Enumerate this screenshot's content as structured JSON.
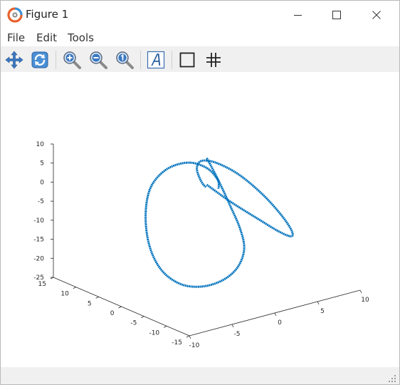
{
  "window": {
    "title": "Figure 1",
    "controls": [
      "minimize",
      "maximize",
      "close"
    ]
  },
  "menu": {
    "items": [
      "File",
      "Edit",
      "Tools"
    ]
  },
  "toolbar": {
    "tools": [
      {
        "name": "pan",
        "icon": "pan-arrows-icon"
      },
      {
        "name": "rotate",
        "icon": "rotate-icon"
      },
      {
        "name": "zoom-in",
        "icon": "zoom-in-icon"
      },
      {
        "name": "zoom-out",
        "icon": "zoom-out-icon"
      },
      {
        "name": "zoom-reset",
        "icon": "zoom-reset-icon"
      },
      {
        "name": "text",
        "icon": "text-icon"
      },
      {
        "name": "box",
        "icon": "box-icon"
      },
      {
        "name": "grid",
        "icon": "grid-icon"
      }
    ]
  },
  "chart_data": {
    "type": "line",
    "dimension": "3d",
    "title": "",
    "xlabel": "",
    "ylabel": "",
    "zlabel": "",
    "xlim": [
      -10,
      10
    ],
    "ylim": [
      -15,
      15
    ],
    "zlim": [
      -25,
      10
    ],
    "x_ticks": [
      "-10",
      "-5",
      "0",
      "5",
      "10"
    ],
    "y_ticks": [
      "-15",
      "-10",
      "-5",
      "0",
      "5",
      "10",
      "15"
    ],
    "z_ticks": [
      "-25",
      "-20",
      "-15",
      "-10",
      "-5",
      "0",
      "5",
      "10"
    ],
    "grid": false,
    "color": "#0072BD",
    "series": [
      {
        "x": [
          0.0,
          1.2,
          2.6,
          3.6,
          3.9,
          3.0,
          1.2,
          -1.2,
          -3.6,
          -5.6,
          -6.8,
          -7.0,
          -6.2,
          -4.2,
          -1.6,
          0.5,
          1.6,
          1.6
        ],
        "y": [
          0.0,
          -0.1,
          -0.3,
          -0.6,
          -0.9,
          -1.1,
          -1.2,
          -1.2,
          -1.0,
          -0.6,
          -0.2,
          0.3,
          0.7,
          1.0,
          1.1,
          0.9,
          0.6,
          0.4
        ],
        "z": [
          8.0,
          2.0,
          -6.0,
          -12.5,
          -17.8,
          -22.0,
          -24.2,
          -24.4,
          -22.4,
          -17.8,
          -11.0,
          -3.0,
          3.6,
          7.0,
          7.2,
          4.6,
          1.0,
          -1.2
        ]
      },
      {
        "x": [
          0.0,
          3.0,
          6.3,
          9.0,
          10.6,
          10.8,
          9.6,
          7.2,
          4.2,
          1.4,
          -0.4,
          -1.0,
          -0.6,
          -0.1
        ],
        "y": [
          0.0,
          0.3,
          0.7,
          1.1,
          1.4,
          1.6,
          1.6,
          1.4,
          1.1,
          0.8,
          0.5,
          0.3,
          0.1,
          0.0
        ],
        "z": [
          1.0,
          -5.5,
          -12.0,
          -17.2,
          -19.6,
          -18.4,
          -13.6,
          -6.4,
          0.8,
          5.6,
          7.2,
          5.6,
          2.2,
          0.4
        ]
      }
    ]
  }
}
